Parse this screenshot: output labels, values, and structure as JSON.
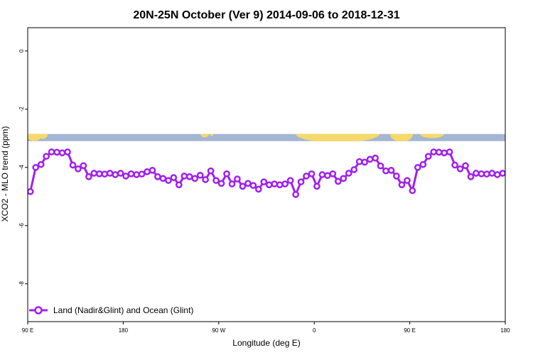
{
  "chart_data": {
    "type": "line",
    "title": "20N-25N October (Ver 9)   2014-09-06 to 2018-12-31",
    "xlabel": "Longitude (deg E)",
    "ylabel": "XCO2 - MLO trend (ppm)",
    "xlim": [
      90,
      540
    ],
    "ylim": [
      -9.3,
      0.8
    ],
    "grid": false,
    "legend_position": "bottom-left",
    "series_color": "#a020f0",
    "map_colors": {
      "ocean": "#a3b6d4",
      "land": "#f5d96b"
    },
    "x_ticks": [
      {
        "value": 90,
        "label": "90 E"
      },
      {
        "value": 180,
        "label": "180"
      },
      {
        "value": 270,
        "label": "90 W"
      },
      {
        "value": 360,
        "label": "0"
      },
      {
        "value": 450,
        "label": "90 E"
      },
      {
        "value": 540,
        "label": "180"
      }
    ],
    "y_ticks": [
      {
        "value": 0,
        "label": "0"
      },
      {
        "value": -2,
        "label": "-2"
      },
      {
        "value": -4,
        "label": "-4"
      },
      {
        "value": -6,
        "label": "-6"
      },
      {
        "value": -8,
        "label": "-8"
      }
    ],
    "map_band_y": [
      -2.85,
      -3.1
    ],
    "series": [
      {
        "name": "Land (Nadir&Glint) and Ocean (Glint)",
        "x": [
          92.5,
          97.5,
          102.5,
          107.5,
          112.5,
          117.5,
          122.5,
          127.5,
          132.5,
          137.5,
          142.5,
          147.5,
          152.5,
          157.5,
          162.5,
          167.5,
          172.5,
          177.5,
          182.5,
          187.5,
          192.5,
          197.5,
          202.5,
          207.5,
          212.5,
          217.5,
          222.5,
          227.5,
          232.5,
          237.5,
          242.5,
          247.5,
          252.5,
          257.5,
          262.5,
          267.5,
          272.5,
          277.5,
          282.5,
          287.5,
          292.5,
          297.5,
          302.5,
          307.5,
          312.5,
          317.5,
          322.5,
          327.5,
          332.5,
          337.5,
          342.5,
          347.5,
          352.5,
          357.5,
          362.5,
          367.5,
          372.5,
          377.5,
          382.5,
          387.5,
          392.5,
          397.5,
          402.5,
          407.5,
          412.5,
          417.5,
          422.5,
          427.5,
          432.5,
          437.5,
          442.5,
          447.5,
          452.5,
          457.5,
          462.5,
          467.5,
          472.5,
          477.5,
          482.5,
          487.5,
          492.5,
          497.5,
          502.5,
          507.5,
          512.5,
          517.5,
          522.5,
          527.5,
          532.5,
          537.5
        ],
        "y": [
          -4.83,
          -4.0,
          -3.9,
          -3.62,
          -3.47,
          -3.48,
          -3.5,
          -3.47,
          -3.92,
          -4.05,
          -3.94,
          -4.32,
          -4.2,
          -4.22,
          -4.23,
          -4.2,
          -4.25,
          -4.2,
          -4.3,
          -4.22,
          -4.25,
          -4.23,
          -4.15,
          -4.1,
          -4.32,
          -4.38,
          -4.45,
          -4.35,
          -4.6,
          -4.3,
          -4.32,
          -4.38,
          -4.27,
          -4.42,
          -4.12,
          -4.45,
          -4.55,
          -4.22,
          -4.57,
          -4.4,
          -4.65,
          -4.55,
          -4.62,
          -4.75,
          -4.5,
          -4.6,
          -4.57,
          -4.6,
          -4.57,
          -4.45,
          -4.93,
          -4.5,
          -4.3,
          -4.22,
          -4.65,
          -4.25,
          -4.28,
          -4.22,
          -4.48,
          -4.38,
          -4.2,
          -4.08,
          -3.8,
          -3.82,
          -3.72,
          -3.68,
          -3.95,
          -4.12,
          -4.1,
          -4.3,
          -4.6,
          -4.45,
          -4.8,
          -4.0,
          -3.9,
          -3.62,
          -3.47,
          -3.48,
          -3.5,
          -3.47,
          -3.92,
          -4.05,
          -3.94,
          -4.32,
          -4.2,
          -4.22,
          -4.23,
          -4.2,
          -4.25,
          -4.2
        ]
      }
    ]
  }
}
